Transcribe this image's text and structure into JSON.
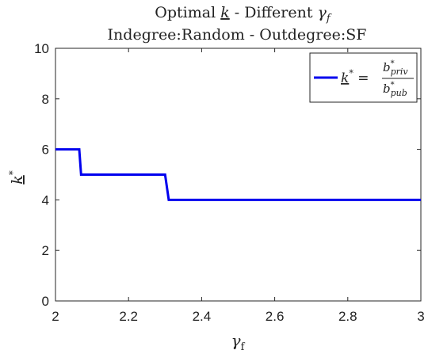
{
  "chart_data": {
    "type": "line",
    "title_line1_parts": [
      "Optimal ",
      "k",
      " - Different ",
      "γ",
      "f"
    ],
    "title_line2": "Indegree:Random - Outdegree:SF",
    "xlabel_parts": [
      "γ",
      "f"
    ],
    "ylabel_parts": [
      "k",
      "*"
    ],
    "xlim": [
      2,
      3
    ],
    "ylim": [
      0,
      10
    ],
    "xticks": [
      2,
      2.2,
      2.4,
      2.6,
      2.8,
      3
    ],
    "xtick_labels": [
      "2",
      "2.2",
      "2.4",
      "2.6",
      "2.8",
      "3"
    ],
    "yticks": [
      0,
      2,
      4,
      6,
      8,
      10
    ],
    "ytick_labels": [
      "0",
      "2",
      "4",
      "6",
      "8",
      "10"
    ],
    "grid": false,
    "legend_position": "top-right",
    "series": [
      {
        "color": "#0000ee",
        "x": [
          2.0,
          2.065,
          2.07,
          2.3,
          2.31,
          3.0
        ],
        "y": [
          6,
          6,
          5,
          5,
          4,
          4
        ]
      }
    ],
    "legend": {
      "lhs_parts": [
        "k",
        "*",
        " = "
      ],
      "numerator_parts": [
        "b",
        "*",
        "priv"
      ],
      "denominator_parts": [
        "b",
        "*",
        "pub"
      ]
    }
  }
}
